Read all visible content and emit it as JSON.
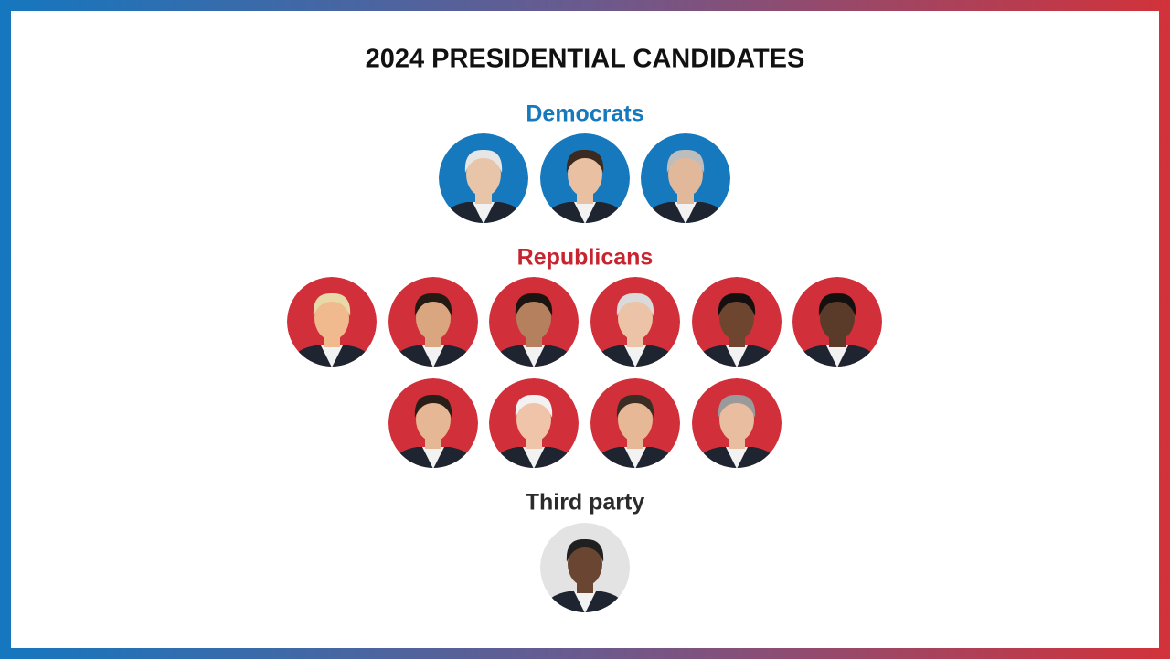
{
  "header": {
    "title": "2024 PRESIDENTIAL CANDIDATES"
  },
  "sections": [
    {
      "heading": "Democrats"
    },
    {
      "heading": "Republicans"
    },
    {
      "heading": "Third party"
    }
  ]
}
